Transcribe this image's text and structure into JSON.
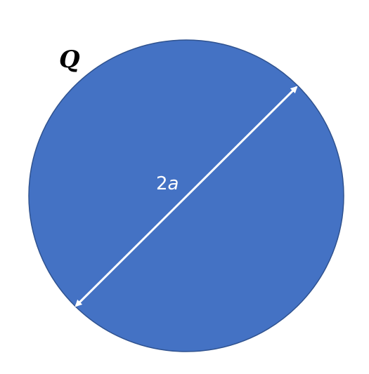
{
  "labels": {
    "charge": "Q",
    "diameter_coefficient": "2",
    "diameter_variable": "a"
  },
  "colors": {
    "disk_fill": "#4472C4",
    "disk_stroke": "#2F528F",
    "arrow": "#FFFFFF",
    "charge_label": "#000000",
    "diameter_label": "#FFFFFF"
  }
}
